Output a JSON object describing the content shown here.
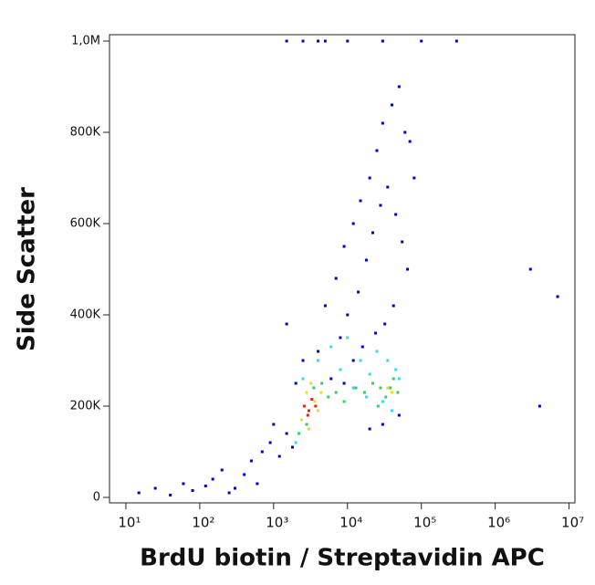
{
  "chart_data": {
    "type": "scatter",
    "x_label": "BrdU biotin / Streptavidin APC",
    "y_label": "Side Scatter",
    "xscale": "log",
    "xlim": [
      6,
      12000000
    ],
    "ylim": [
      -12000,
      1014000
    ],
    "xticks": [
      {
        "value": 10,
        "label": "10¹"
      },
      {
        "value": 100,
        "label": "10²"
      },
      {
        "value": 1000,
        "label": "10³"
      },
      {
        "value": 10000,
        "label": "10⁴"
      },
      {
        "value": 100000,
        "label": "10⁵"
      },
      {
        "value": 1000000,
        "label": "10⁶"
      },
      {
        "value": 10000000,
        "label": "10⁷"
      }
    ],
    "yticks": [
      0,
      {
        "value": 200000,
        "label": "200K"
      },
      {
        "value": 400000,
        "label": "400K"
      },
      {
        "value": 600000,
        "label": "600K"
      },
      {
        "value": 800000,
        "label": "800K"
      },
      {
        "value": 1000000,
        "label": "1,0M"
      }
    ],
    "series": [
      {
        "color": "#0000c8",
        "x": [
          15,
          25,
          40,
          60,
          80,
          120,
          150,
          200,
          300,
          500,
          700,
          900,
          1200,
          1500,
          1800,
          600,
          400,
          250,
          1000,
          2000,
          2500,
          1500,
          5000,
          7000,
          9000,
          12000,
          15000,
          20000,
          25000,
          30000,
          40000,
          50000,
          60000,
          70000,
          80000,
          8000,
          10000,
          14000,
          18000,
          22000,
          28000,
          35000,
          45000,
          55000,
          65000,
          12000,
          16000,
          24000,
          32000,
          42000,
          9000,
          6000,
          4000,
          3000,
          20000,
          30000,
          50000,
          3000000,
          7000000,
          4000000,
          1500,
          2500,
          4000,
          5000,
          10000,
          30000,
          100000,
          300000
        ],
        "values": [
          10000,
          20000,
          5000,
          30000,
          15000,
          25000,
          40000,
          60000,
          20000,
          80000,
          100000,
          120000,
          90000,
          140000,
          110000,
          30000,
          50000,
          10000,
          160000,
          250000,
          300000,
          380000,
          420000,
          480000,
          550000,
          600000,
          650000,
          700000,
          760000,
          820000,
          860000,
          900000,
          800000,
          780000,
          700000,
          350000,
          400000,
          450000,
          520000,
          580000,
          640000,
          680000,
          620000,
          560000,
          500000,
          300000,
          330000,
          360000,
          380000,
          420000,
          250000,
          260000,
          320000,
          150000,
          150000,
          160000,
          180000,
          500000,
          440000,
          200000,
          1000000,
          1000000,
          1000000,
          1000000,
          1000000,
          1000000,
          1000000,
          1000000
        ]
      },
      {
        "color": "#33ddee",
        "x": [
          2000,
          2500,
          4000,
          6000,
          8000,
          10000,
          15000,
          20000,
          25000,
          35000,
          45000,
          50000,
          12000,
          18000,
          30000,
          40000
        ],
        "values": [
          120000,
          260000,
          300000,
          330000,
          280000,
          350000,
          300000,
          270000,
          320000,
          300000,
          280000,
          260000,
          240000,
          220000,
          210000,
          190000
        ]
      },
      {
        "color": "#33cc66",
        "x": [
          2200,
          2800,
          3500,
          4500,
          5500,
          7000,
          9000,
          13000,
          17000,
          22000,
          28000,
          33000,
          38000,
          42000,
          48000,
          26000
        ],
        "values": [
          140000,
          160000,
          240000,
          250000,
          220000,
          230000,
          210000,
          240000,
          230000,
          250000,
          240000,
          220000,
          240000,
          260000,
          230000,
          200000
        ]
      },
      {
        "color": "#e8e020",
        "x": [
          2400,
          2800,
          3200,
          3600,
          4000,
          4400,
          3000,
          35000,
          40000
        ],
        "values": [
          170000,
          230000,
          250000,
          210000,
          190000,
          230000,
          150000,
          240000,
          230000
        ]
      },
      {
        "color": "#e82010",
        "x": [
          2600,
          3000,
          3300,
          3700,
          2900
        ],
        "values": [
          200000,
          190000,
          215000,
          200000,
          180000
        ]
      }
    ]
  }
}
